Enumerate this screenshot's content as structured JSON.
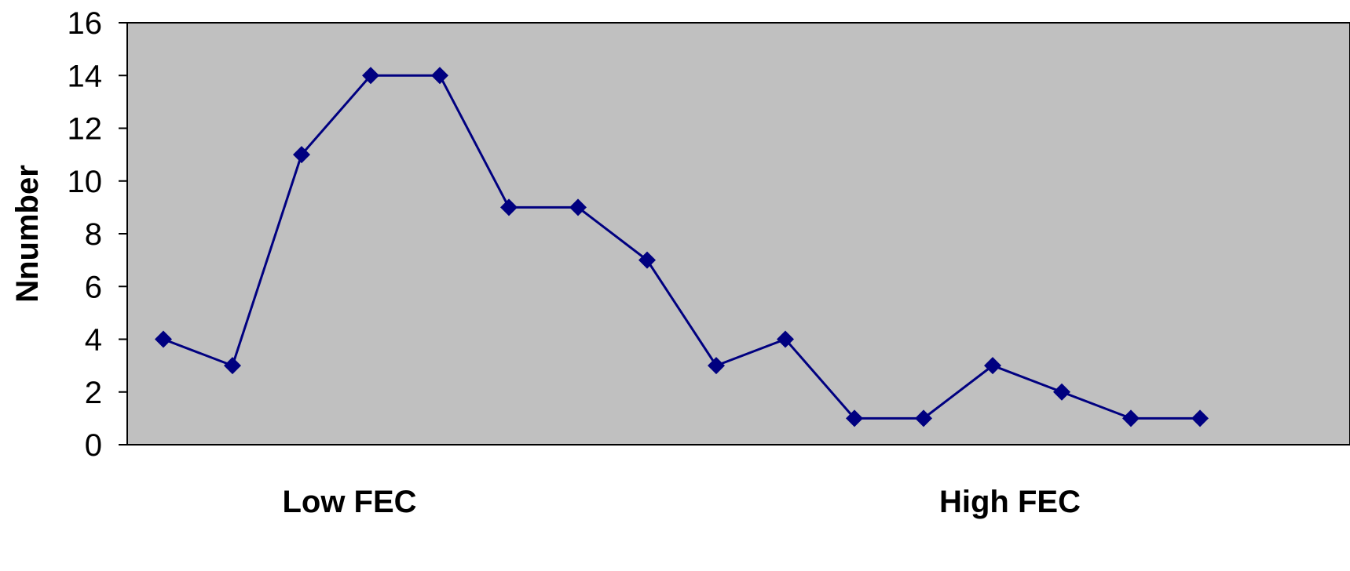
{
  "chart_data": {
    "type": "line",
    "title": "",
    "xlabel": "",
    "ylabel": "Nnumber",
    "x_end_labels": {
      "left": "Low FEC",
      "right": "High FEC"
    },
    "x": [
      1,
      2,
      3,
      4,
      5,
      6,
      7,
      8,
      9,
      10,
      11,
      12,
      13,
      14,
      15,
      16
    ],
    "series": [
      {
        "values": [
          4,
          3,
          11,
          14,
          14,
          9,
          9,
          7,
          3,
          4,
          1,
          1,
          3,
          2,
          1,
          1
        ]
      }
    ],
    "ylim": [
      0,
      16
    ],
    "yticks": [
      0,
      2,
      4,
      6,
      8,
      10,
      12,
      14,
      16
    ],
    "grid": false,
    "legend": "none",
    "colors": {
      "plot_background": "#c0c0c0",
      "line": "#000080",
      "marker": "#000080",
      "axis": "#000000"
    },
    "marker": "diamond"
  }
}
